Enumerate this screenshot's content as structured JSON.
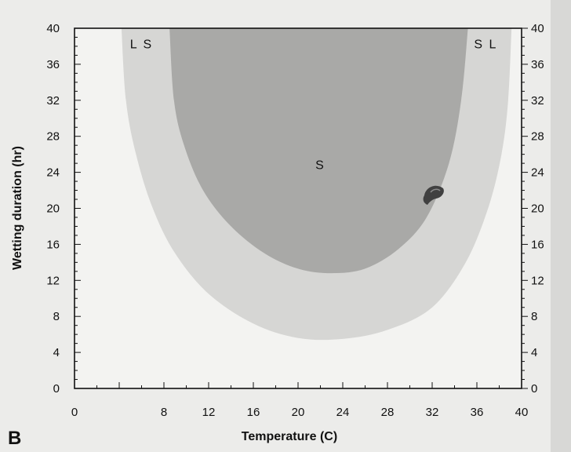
{
  "chart_data": {
    "type": "area",
    "panel_label": "B",
    "title": "",
    "xlabel": "Temperature (C)",
    "ylabel": "Wetting duration (hr)",
    "xlim": [
      0,
      40
    ],
    "ylim": [
      0,
      40
    ],
    "x_ticks": [
      0,
      8,
      12,
      16,
      20,
      24,
      28,
      32,
      36,
      40
    ],
    "y_ticks": [
      0,
      4,
      8,
      12,
      16,
      20,
      24,
      28,
      32,
      36,
      40
    ],
    "y_ticks_right": [
      0,
      4,
      8,
      12,
      16,
      20,
      24,
      28,
      32,
      36,
      40
    ],
    "grid": false,
    "regions": [
      {
        "label": "L",
        "color": "#d6d6d4",
        "boundary": [
          [
            4.2,
            40
          ],
          [
            4.6,
            32
          ],
          [
            5.5,
            26
          ],
          [
            7,
            20
          ],
          [
            9,
            15
          ],
          [
            12,
            10.5
          ],
          [
            16,
            7.2
          ],
          [
            20,
            5.6
          ],
          [
            24,
            5.5
          ],
          [
            28,
            6.5
          ],
          [
            32,
            9
          ],
          [
            35,
            14
          ],
          [
            37,
            20
          ],
          [
            38.2,
            26
          ],
          [
            38.8,
            32
          ],
          [
            39.1,
            40
          ]
        ]
      },
      {
        "label": "S",
        "color": "#a9a9a7",
        "boundary": [
          [
            8.5,
            40
          ],
          [
            8.9,
            32
          ],
          [
            9.8,
            27
          ],
          [
            11.5,
            22
          ],
          [
            14,
            18
          ],
          [
            17,
            15
          ],
          [
            20,
            13.3
          ],
          [
            23,
            12.8
          ],
          [
            26,
            13.3
          ],
          [
            29,
            15.5
          ],
          [
            31.5,
            19
          ],
          [
            33.5,
            25
          ],
          [
            34.6,
            32
          ],
          [
            35.2,
            40
          ]
        ]
      }
    ],
    "annotations": [
      {
        "text": "L S",
        "x": 6.0,
        "y": 38.2
      },
      {
        "text": "S L",
        "x": 36.8,
        "y": 38.2
      },
      {
        "text": "S",
        "x": 22.0,
        "y": 24.8
      }
    ]
  }
}
